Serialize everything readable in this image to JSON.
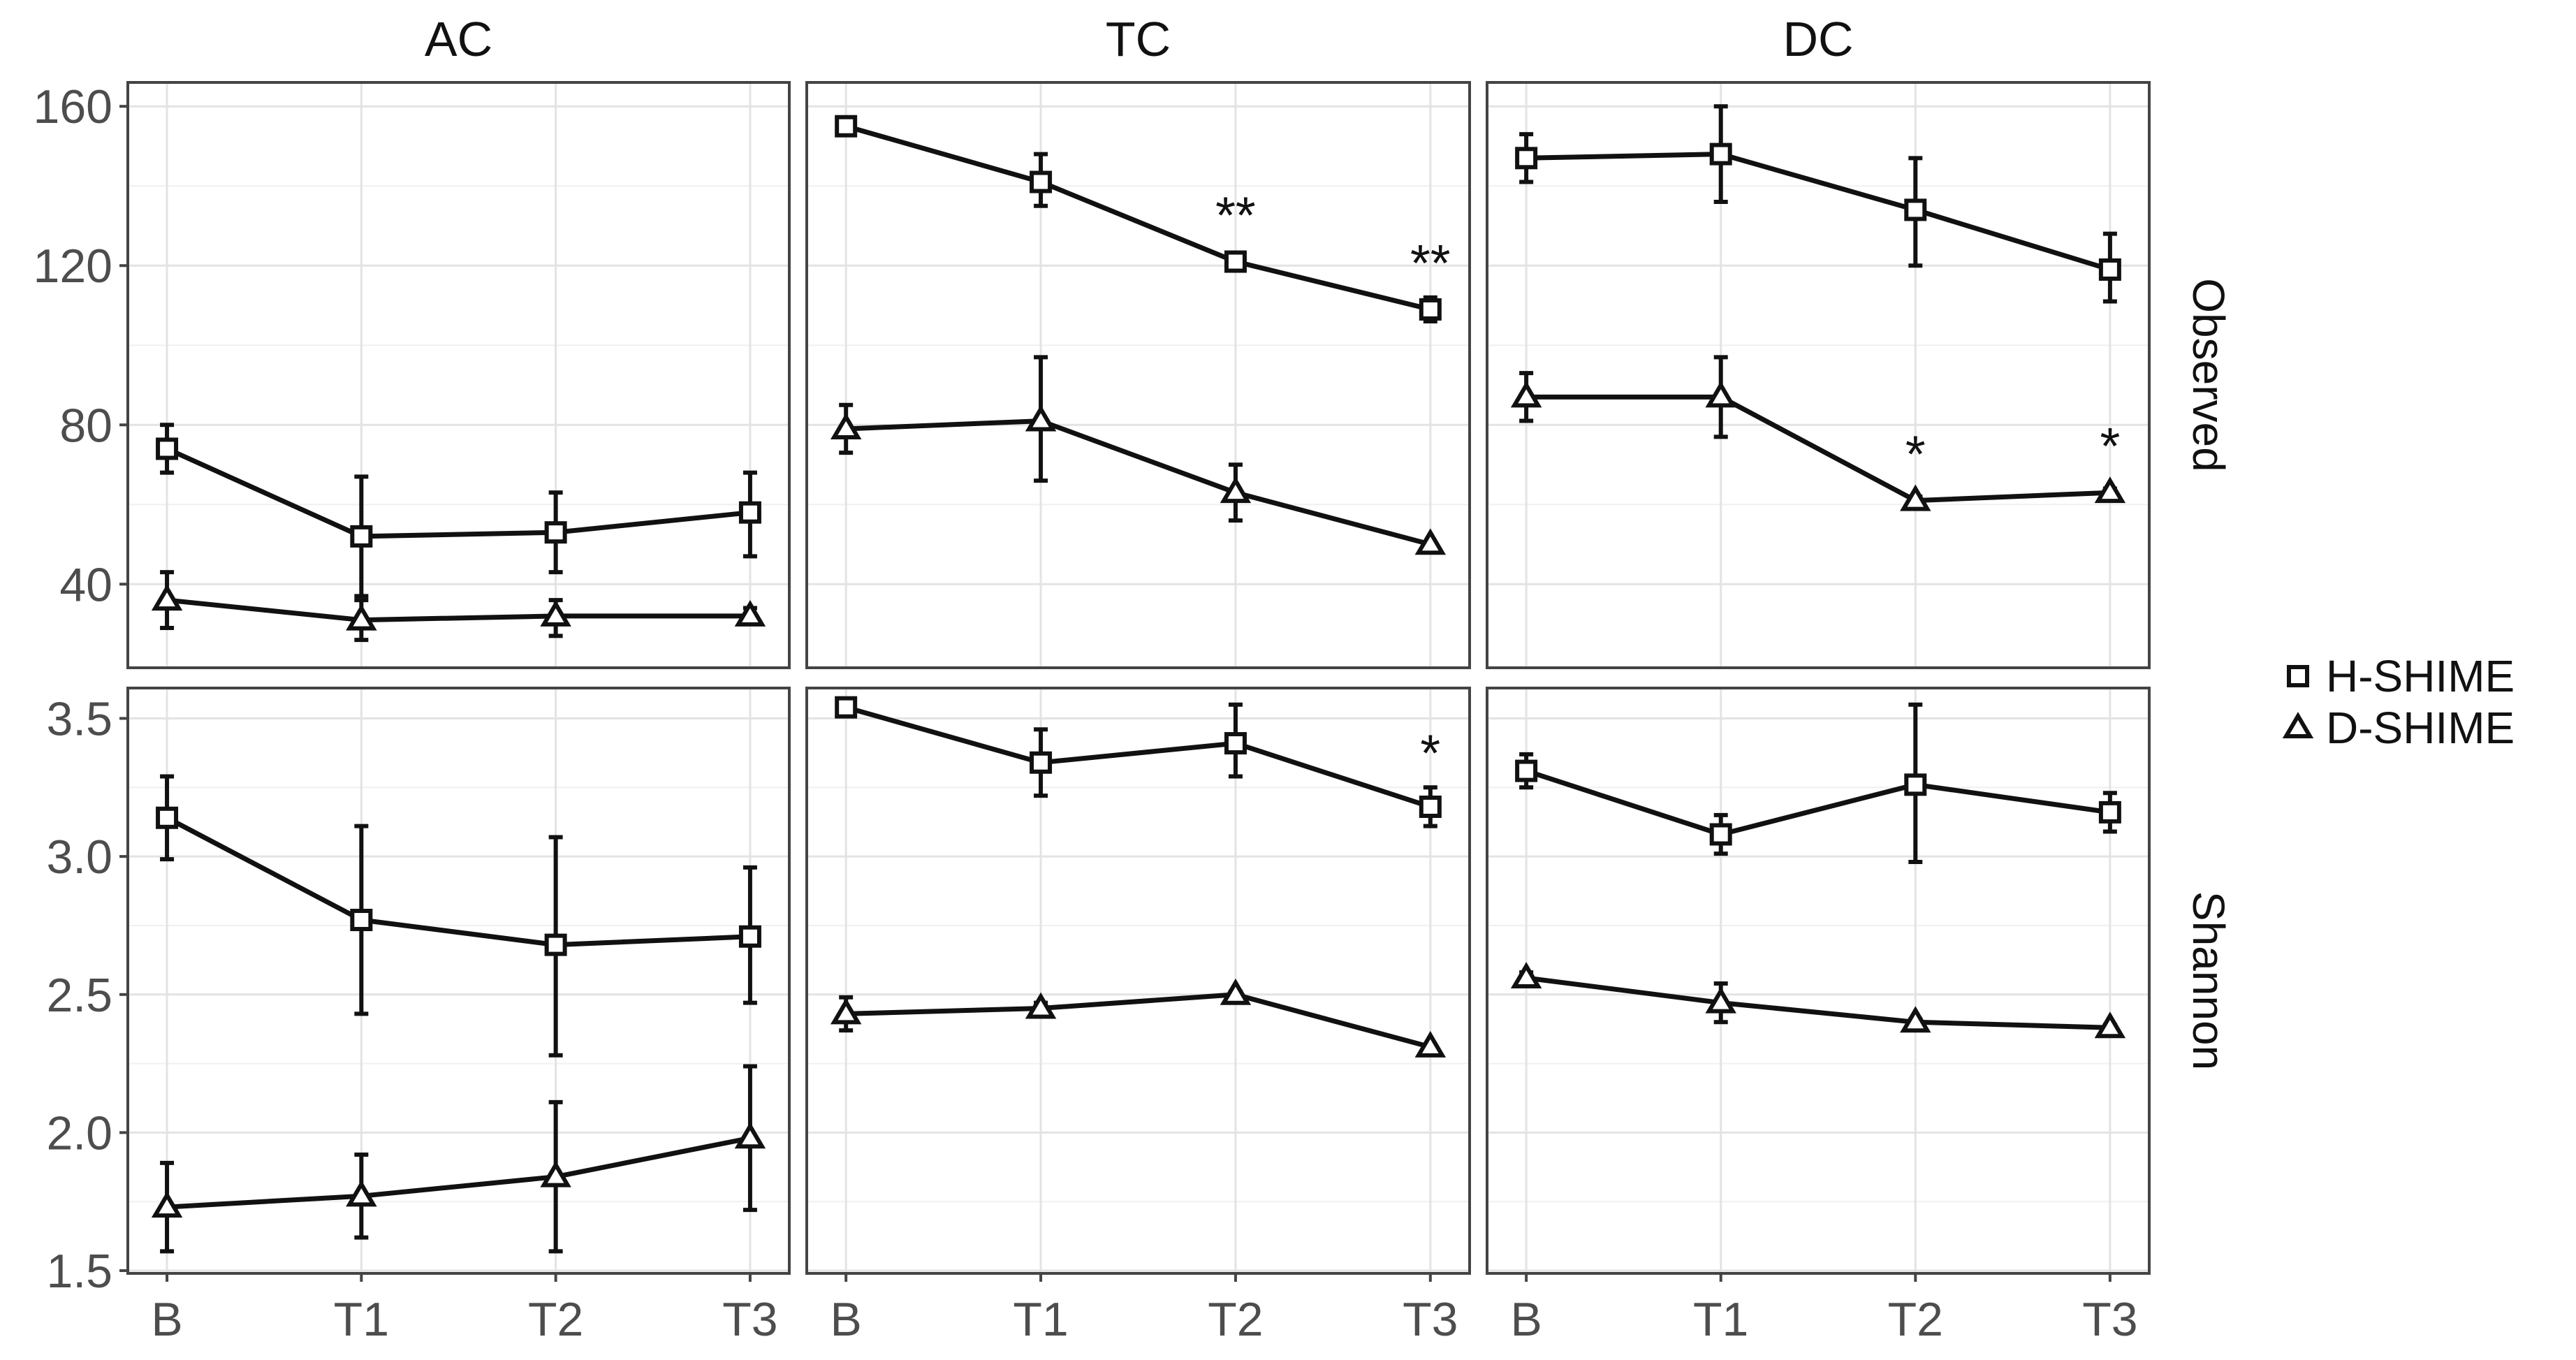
{
  "chart_data": {
    "type": "line",
    "layout": "facet-grid",
    "columns": [
      "AC",
      "TC",
      "DC"
    ],
    "rows": [
      "Observed",
      "Shannon"
    ],
    "categories": [
      "B",
      "T1",
      "T2",
      "T3"
    ],
    "y_axes": {
      "Observed": {
        "lim": [
          19,
          166
        ],
        "ticks": [
          40,
          80,
          120,
          160
        ],
        "tick_labels": [
          "40",
          "80",
          "120",
          "160"
        ]
      },
      "Shannon": {
        "lim": [
          1.49,
          3.61
        ],
        "ticks": [
          1.5,
          2.0,
          2.5,
          3.0,
          3.5
        ],
        "tick_labels": [
          "1.5",
          "2.0",
          "2.5",
          "3.0",
          "3.5"
        ]
      }
    },
    "grid": true,
    "legend": {
      "position": "right",
      "entries": [
        {
          "name": "H-SHIME",
          "marker": "square"
        },
        {
          "name": "D-SHIME",
          "marker": "triangle"
        }
      ]
    },
    "panels": [
      {
        "row": "Observed",
        "column": "AC",
        "series": [
          {
            "name": "H-SHIME",
            "values": [
              74,
              52,
              53,
              58
            ],
            "err_low": [
              68,
              37,
              43,
              47
            ],
            "err_high": [
              80,
              67,
              63,
              68
            ],
            "annotations": [
              "",
              "",
              "",
              ""
            ]
          },
          {
            "name": "D-SHIME",
            "values": [
              36,
              31,
              32,
              32
            ],
            "err_low": [
              29,
              26,
              27,
              30
            ],
            "err_high": [
              43,
              36,
              36,
              34
            ],
            "annotations": [
              "",
              "",
              "",
              ""
            ]
          }
        ]
      },
      {
        "row": "Observed",
        "column": "TC",
        "series": [
          {
            "name": "H-SHIME",
            "values": [
              155,
              141,
              121,
              109
            ],
            "err_low": [
              153,
              135,
              119,
              106
            ],
            "err_high": [
              157,
              148,
              123,
              112
            ],
            "annotations": [
              "",
              "",
              "**",
              "**"
            ]
          },
          {
            "name": "D-SHIME",
            "values": [
              79,
              81,
              63,
              50
            ],
            "err_low": [
              73,
              66,
              56,
              50
            ],
            "err_high": [
              85,
              97,
              70,
              50
            ],
            "annotations": [
              "",
              "",
              "",
              ""
            ]
          }
        ]
      },
      {
        "row": "Observed",
        "column": "DC",
        "series": [
          {
            "name": "H-SHIME",
            "values": [
              147,
              148,
              134,
              119
            ],
            "err_low": [
              141,
              136,
              120,
              111
            ],
            "err_high": [
              153,
              160,
              147,
              128
            ],
            "annotations": [
              "",
              "",
              "",
              ""
            ]
          },
          {
            "name": "D-SHIME",
            "values": [
              87,
              87,
              61,
              63
            ],
            "err_low": [
              81,
              77,
              60,
              62
            ],
            "err_high": [
              93,
              97,
              62,
              64
            ],
            "annotations": [
              "",
              "",
              "*",
              "*"
            ]
          }
        ]
      },
      {
        "row": "Shannon",
        "column": "AC",
        "series": [
          {
            "name": "H-SHIME",
            "values": [
              3.14,
              2.77,
              2.68,
              2.71
            ],
            "err_low": [
              2.99,
              2.43,
              2.28,
              2.47
            ],
            "err_high": [
              3.29,
              3.11,
              3.07,
              2.96
            ],
            "annotations": [
              "",
              "",
              "",
              ""
            ]
          },
          {
            "name": "D-SHIME",
            "values": [
              1.73,
              1.77,
              1.84,
              1.98
            ],
            "err_low": [
              1.57,
              1.62,
              1.57,
              1.72
            ],
            "err_high": [
              1.89,
              1.92,
              2.11,
              2.24
            ],
            "annotations": [
              "",
              "",
              "",
              ""
            ]
          }
        ]
      },
      {
        "row": "Shannon",
        "column": "TC",
        "series": [
          {
            "name": "H-SHIME",
            "values": [
              3.54,
              3.34,
              3.41,
              3.18
            ],
            "err_low": [
              3.53,
              3.22,
              3.29,
              3.11
            ],
            "err_high": [
              3.55,
              3.46,
              3.55,
              3.25
            ],
            "annotations": [
              "",
              "",
              "",
              "*"
            ]
          },
          {
            "name": "D-SHIME",
            "values": [
              2.43,
              2.45,
              2.5,
              2.31
            ],
            "err_low": [
              2.37,
              2.43,
              2.49,
              2.31
            ],
            "err_high": [
              2.49,
              2.47,
              2.51,
              2.31
            ],
            "annotations": [
              "",
              "",
              "",
              ""
            ]
          }
        ]
      },
      {
        "row": "Shannon",
        "column": "DC",
        "series": [
          {
            "name": "H-SHIME",
            "values": [
              3.31,
              3.08,
              3.26,
              3.16
            ],
            "err_low": [
              3.25,
              3.01,
              2.98,
              3.09
            ],
            "err_high": [
              3.37,
              3.15,
              3.55,
              3.23
            ],
            "annotations": [
              "",
              "",
              "",
              ""
            ]
          },
          {
            "name": "D-SHIME",
            "values": [
              2.56,
              2.47,
              2.4,
              2.38
            ],
            "err_low": [
              2.54,
              2.4,
              2.39,
              2.37
            ],
            "err_high": [
              2.58,
              2.54,
              2.41,
              2.39
            ],
            "annotations": [
              "",
              "",
              "",
              ""
            ]
          }
        ]
      }
    ]
  }
}
